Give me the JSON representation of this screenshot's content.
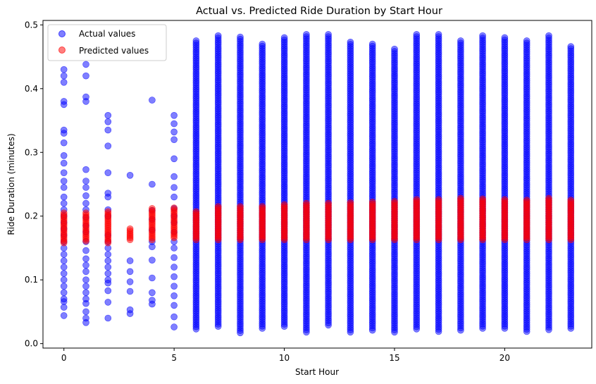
{
  "chart_data": {
    "type": "scatter",
    "title": "Actual vs. Predicted Ride Duration by Start Hour",
    "xlabel": "Start Hour",
    "ylabel": "Ride Duration (minutes)",
    "xlim": [
      -0.95,
      23.95
    ],
    "ylim": [
      -0.007,
      0.507
    ],
    "xticks": [
      0,
      5,
      10,
      15,
      20
    ],
    "yticks": [
      0.0,
      0.1,
      0.2,
      0.3,
      0.4,
      0.5
    ],
    "xtick_labels": [
      "0",
      "5",
      "10",
      "15",
      "20"
    ],
    "ytick_labels": [
      "0.0",
      "0.1",
      "0.2",
      "0.3",
      "0.4",
      "0.5"
    ],
    "grid": false,
    "legend_position": "top-left",
    "series": [
      {
        "name": "Actual values",
        "color": "#0000ff",
        "alpha": 0.5,
        "hours": [
          0,
          1,
          2,
          3,
          4,
          5,
          6,
          7,
          8,
          9,
          10,
          11,
          12,
          13,
          14,
          15,
          16,
          17,
          18,
          19,
          20,
          21,
          22,
          23
        ],
        "sample_y": [
          [
            0.044,
            0.057,
            0.066,
            0.07,
            0.08,
            0.09,
            0.1,
            0.11,
            0.12,
            0.13,
            0.14,
            0.15,
            0.16,
            0.17,
            0.18,
            0.19,
            0.2,
            0.21,
            0.22,
            0.23,
            0.245,
            0.255,
            0.268,
            0.283,
            0.295,
            0.315,
            0.33,
            0.335,
            0.375,
            0.38,
            0.41,
            0.42,
            0.43
          ],
          [
            0.033,
            0.04,
            0.05,
            0.063,
            0.07,
            0.08,
            0.09,
            0.1,
            0.113,
            0.123,
            0.133,
            0.146,
            0.16,
            0.175,
            0.185,
            0.198,
            0.21,
            0.22,
            0.232,
            0.245,
            0.255,
            0.273,
            0.38,
            0.387,
            0.42,
            0.438
          ],
          [
            0.04,
            0.065,
            0.083,
            0.095,
            0.1,
            0.11,
            0.12,
            0.13,
            0.14,
            0.15,
            0.16,
            0.17,
            0.2,
            0.21,
            0.23,
            0.236,
            0.268,
            0.31,
            0.335,
            0.348,
            0.358
          ],
          [
            0.047,
            0.053,
            0.082,
            0.097,
            0.113,
            0.13,
            0.264
          ],
          [
            0.062,
            0.068,
            0.08,
            0.103,
            0.131,
            0.152,
            0.16,
            0.178,
            0.195,
            0.209,
            0.25,
            0.382
          ],
          [
            0.026,
            0.042,
            0.06,
            0.075,
            0.09,
            0.105,
            0.12,
            0.135,
            0.15,
            0.16,
            0.175,
            0.19,
            0.2,
            0.212,
            0.23,
            0.245,
            0.262,
            0.29,
            0.32,
            0.332,
            0.345,
            0.358
          ]
        ]
      },
      {
        "name": "Predicted values",
        "color": "#ff0000",
        "alpha": 0.5,
        "hours": [
          0,
          1,
          2,
          3,
          4,
          5,
          6,
          7,
          8,
          9,
          10,
          11,
          12,
          13,
          14,
          15,
          16,
          17,
          18,
          19,
          20,
          21,
          22,
          23
        ],
        "y_min": [
          0.158,
          0.161,
          0.158,
          0.163,
          0.163,
          0.166,
          0.163,
          0.163,
          0.163,
          0.163,
          0.163,
          0.163,
          0.163,
          0.163,
          0.163,
          0.163,
          0.163,
          0.163,
          0.163,
          0.163,
          0.163,
          0.163,
          0.163,
          0.163
        ],
        "y_max": [
          0.205,
          0.205,
          0.207,
          0.18,
          0.212,
          0.213,
          0.207,
          0.215,
          0.215,
          0.215,
          0.218,
          0.22,
          0.22,
          0.221,
          0.222,
          0.223,
          0.226,
          0.226,
          0.228,
          0.227,
          0.226,
          0.225,
          0.228,
          0.225
        ]
      }
    ],
    "actual_range": {
      "hours": [
        6,
        7,
        8,
        9,
        10,
        11,
        12,
        13,
        14,
        15,
        16,
        17,
        18,
        19,
        20,
        21,
        22,
        23
      ],
      "y_min": [
        0.023,
        0.027,
        0.017,
        0.024,
        0.027,
        0.018,
        0.029,
        0.018,
        0.021,
        0.018,
        0.023,
        0.019,
        0.021,
        0.024,
        0.024,
        0.019,
        0.022,
        0.024
      ],
      "y_max": [
        0.475,
        0.483,
        0.481,
        0.47,
        0.48,
        0.485,
        0.485,
        0.473,
        0.47,
        0.462,
        0.485,
        0.485,
        0.475,
        0.483,
        0.48,
        0.475,
        0.483,
        0.466
      ]
    }
  }
}
